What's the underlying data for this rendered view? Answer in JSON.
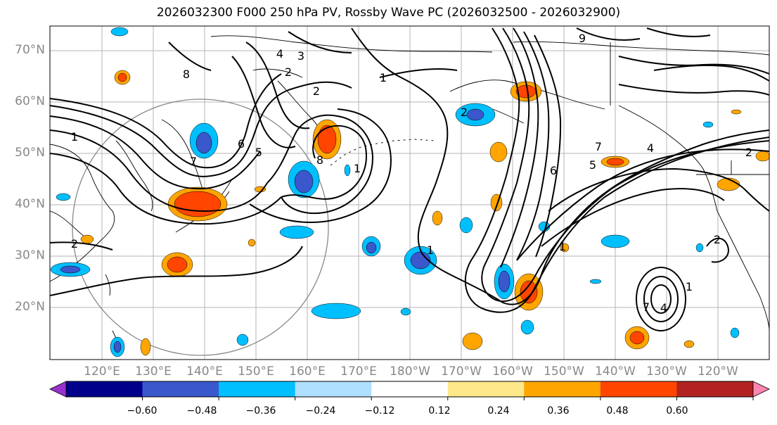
{
  "title": "2026032300 F000 250 hPa PV, Rossby Wave PC (2026032500 - 2026032900)",
  "lat_labels": [
    "70°N",
    "60°N",
    "50°N",
    "40°N",
    "30°N",
    "20°N"
  ],
  "lon_labels": [
    "120°E",
    "130°E",
    "140°E",
    "150°E",
    "160°E",
    "170°E",
    "180°W",
    "170°W",
    "160°W",
    "150°W",
    "140°W",
    "130°W",
    "120°W"
  ],
  "colorbar": {
    "ticks": [
      "−0.60",
      "−0.48",
      "−0.36",
      "−0.24",
      "−0.12",
      "0.12",
      "0.24",
      "0.36",
      "0.48",
      "0.60"
    ],
    "colors": [
      "#9932cc",
      "#00008b",
      "#3a57cc",
      "#00bfff",
      "#b0e0ff",
      "#ffffff",
      "#ffe88a",
      "#ffa500",
      "#ff4500",
      "#b22222",
      "#ff86b0"
    ]
  },
  "contour_labels": [
    "4",
    "3",
    "2",
    "1",
    "8",
    "9",
    "2",
    "1",
    "6",
    "5",
    "7",
    "8",
    "1",
    "2",
    "1",
    "6",
    "5",
    "7",
    "4",
    "2",
    "1",
    "2",
    "1",
    "2",
    "7",
    "4"
  ]
}
